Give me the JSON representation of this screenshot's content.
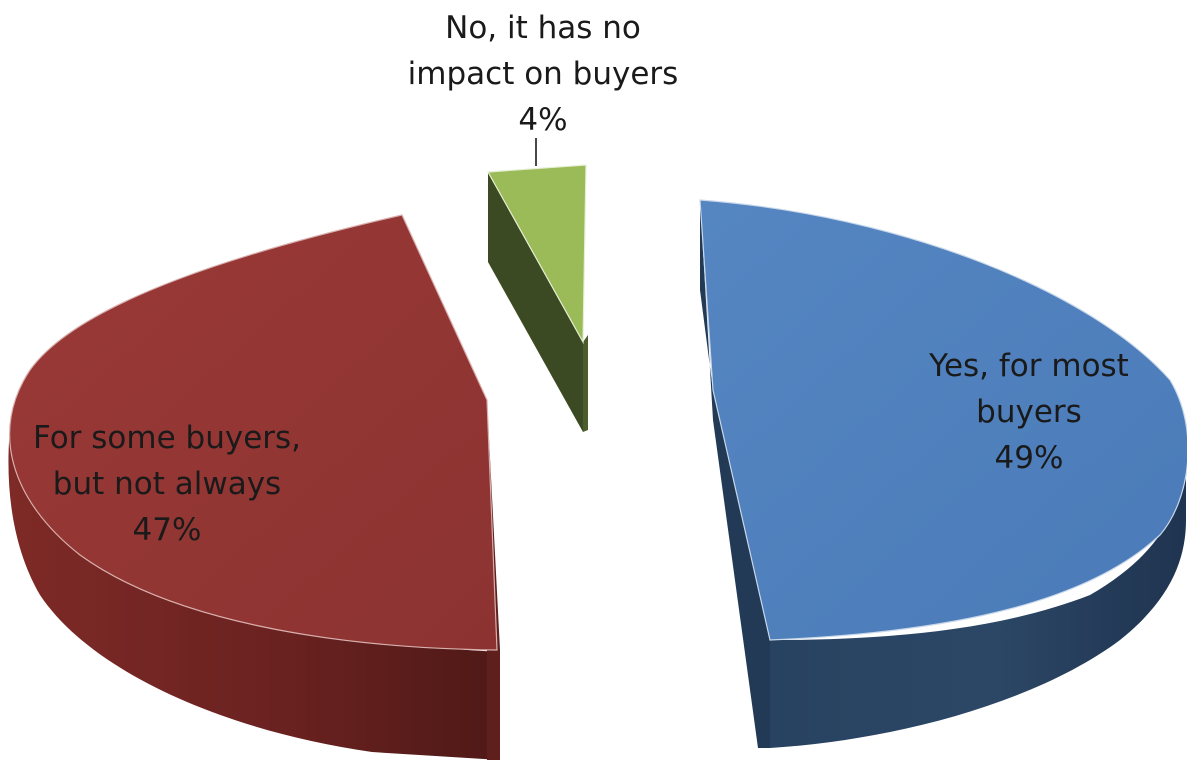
{
  "chart_data": {
    "type": "pie",
    "style": "3d-exploded",
    "slices": [
      {
        "label_lines": [
          "No, it has no",
          "impact on buyers"
        ],
        "percent_label": "4%",
        "value": 4,
        "color": "#9bbb59"
      },
      {
        "label_lines": [
          "Yes, for most",
          "buyers"
        ],
        "percent_label": "49%",
        "value": 49,
        "color": "#4f81bd"
      },
      {
        "label_lines": [
          "For some buyers,",
          "but not always"
        ],
        "percent_label": "47%",
        "value": 47,
        "color": "#943634"
      }
    ],
    "legend": "none",
    "label_position": "on-slice"
  }
}
